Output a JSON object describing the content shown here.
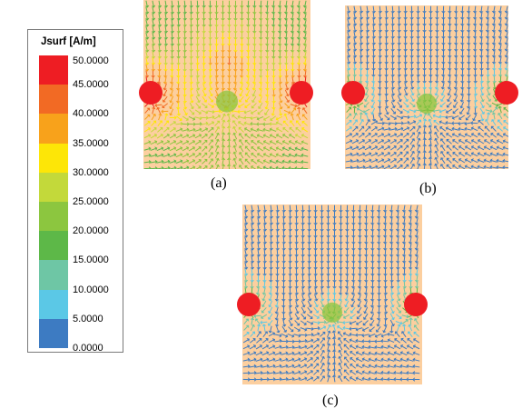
{
  "legend": {
    "title": "Jsurf [A/m]",
    "labels": [
      "50.0000",
      "45.0000",
      "40.0000",
      "35.0000",
      "30.0000",
      "25.0000",
      "20.0000",
      "15.0000",
      "10.0000",
      "5.0000",
      "0.0000"
    ],
    "colors": [
      "#ee1d23",
      "#f26a24",
      "#f8a21b",
      "#fde607",
      "#c3d93a",
      "#8cc63f",
      "#5db848",
      "#6ec6a5",
      "#5bc8e6",
      "#3d7bc2",
      "#2e3d97"
    ]
  },
  "panels": {
    "a": {
      "caption": "(a)"
    },
    "b": {
      "caption": "(b)"
    },
    "c": {
      "caption": "(c)"
    }
  },
  "colors": {
    "panel_bg": "#fccf9f",
    "arrow_low": "#2e3d97",
    "arrow_mid": "#5bc8e6",
    "arrow_high": "#ee1d23",
    "contact": "#ee1d23"
  }
}
